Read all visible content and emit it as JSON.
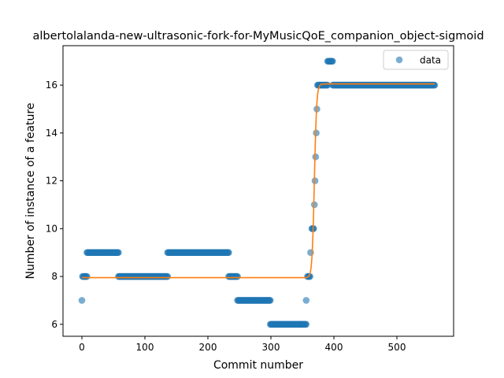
{
  "chart_data": {
    "type": "scatter",
    "title": "albertolalanda-new-ultrasonic-fork-for-MyMusicQoE_companion_object-sigmoid",
    "xlabel": "Commit number",
    "ylabel": "Number of instance of a feature",
    "xlim": [
      -30,
      590
    ],
    "ylim": [
      5.5,
      17.65
    ],
    "xticks": [
      0,
      100,
      200,
      300,
      400,
      500
    ],
    "yticks": [
      6,
      8,
      10,
      12,
      14,
      16
    ],
    "grid": false,
    "legend": {
      "position": "top-right",
      "entries": [
        "data"
      ]
    },
    "colors": {
      "data": "#1f77b4",
      "fit": "#ff7f0e"
    },
    "series": [
      {
        "name": "data",
        "kind": "scatter",
        "runs": [
          {
            "x_start": 0,
            "x_end": 0,
            "y": 7
          },
          {
            "x_start": 1,
            "x_end": 8,
            "y": 8
          },
          {
            "x_start": 8,
            "x_end": 58,
            "y": 9
          },
          {
            "x_start": 58,
            "x_end": 136,
            "y": 8
          },
          {
            "x_start": 136,
            "x_end": 233,
            "y": 9
          },
          {
            "x_start": 233,
            "x_end": 247,
            "y": 8
          },
          {
            "x_start": 247,
            "x_end": 299,
            "y": 7
          },
          {
            "x_start": 299,
            "x_end": 356,
            "y": 6
          },
          {
            "x_start": 356,
            "x_end": 356,
            "y": 7
          },
          {
            "x_start": 358,
            "x_end": 362,
            "y": 8
          },
          {
            "x_start": 363,
            "x_end": 363,
            "y": 9
          },
          {
            "x_start": 365,
            "x_end": 368,
            "y": 10
          },
          {
            "x_start": 369,
            "x_end": 369,
            "y": 11
          },
          {
            "x_start": 370,
            "x_end": 370,
            "y": 12
          },
          {
            "x_start": 371,
            "x_end": 371,
            "y": 13
          },
          {
            "x_start": 372,
            "x_end": 372,
            "y": 14
          },
          {
            "x_start": 373,
            "x_end": 373,
            "y": 15
          },
          {
            "x_start": 374,
            "x_end": 390,
            "y": 16
          },
          {
            "x_start": 390,
            "x_end": 398,
            "y": 17
          },
          {
            "x_start": 398,
            "x_end": 560,
            "y": 16
          }
        ]
      },
      {
        "name": "",
        "kind": "line",
        "model": "sigmoid",
        "params": {
          "low": 7.95,
          "high": 16.05,
          "midpoint": 369,
          "rate": 0.55
        },
        "x_range": [
          0,
          560
        ]
      }
    ]
  }
}
